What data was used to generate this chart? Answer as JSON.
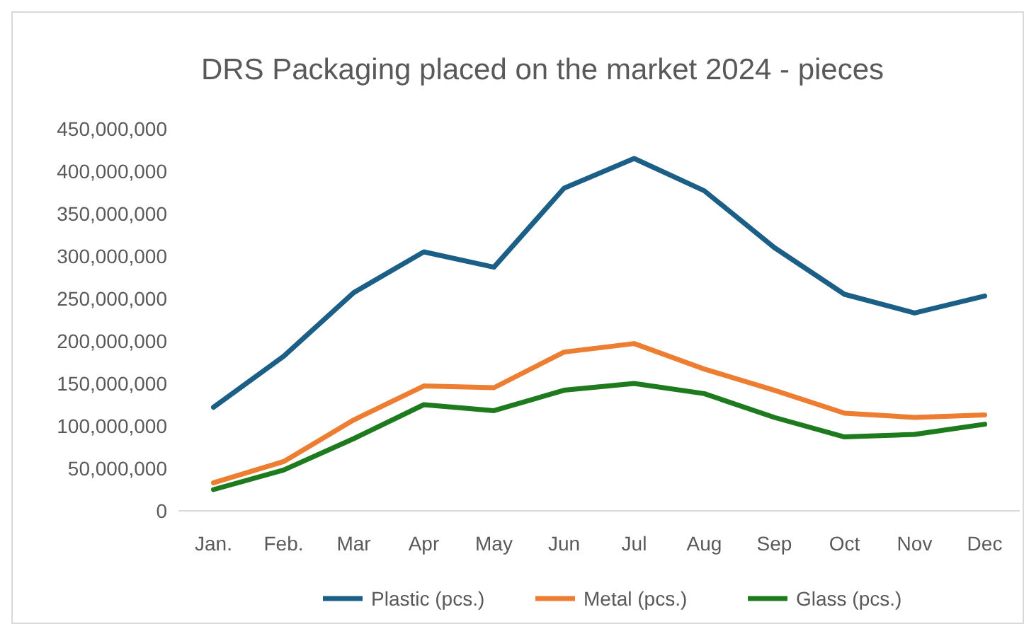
{
  "chart_data": {
    "type": "line",
    "title": "DRS Packaging placed on the market 2024 - pieces",
    "categories": [
      "Jan.",
      "Feb.",
      "Mar",
      "Apr",
      "May",
      "Jun",
      "Jul",
      "Aug",
      "Sep",
      "Oct",
      "Nov",
      "Dec"
    ],
    "series": [
      {
        "name": "Plastic (pcs.)",
        "color": "#1b5f87",
        "values": [
          122000000,
          182000000,
          257000000,
          305000000,
          287000000,
          380000000,
          415000000,
          377000000,
          310000000,
          255000000,
          233000000,
          253000000
        ]
      },
      {
        "name": "Metal (pcs.)",
        "color": "#ed7d31",
        "values": [
          33000000,
          58000000,
          107000000,
          147000000,
          145000000,
          187000000,
          197000000,
          167000000,
          142000000,
          115000000,
          110000000,
          113000000
        ]
      },
      {
        "name": "Glass (pcs.)",
        "color": "#1d7a1d",
        "values": [
          25000000,
          48000000,
          85000000,
          125000000,
          118000000,
          142000000,
          150000000,
          138000000,
          110000000,
          87000000,
          90000000,
          102000000
        ]
      }
    ],
    "ylim": [
      0,
      450000000
    ],
    "yticks": [
      {
        "value": 0,
        "label": "0"
      },
      {
        "value": 50000000,
        "label": "50,000,000"
      },
      {
        "value": 100000000,
        "label": "100,000,000"
      },
      {
        "value": 150000000,
        "label": "150,000,000"
      },
      {
        "value": 200000000,
        "label": "200,000,000"
      },
      {
        "value": 250000000,
        "label": "250,000,000"
      },
      {
        "value": 300000000,
        "label": "300,000,000"
      },
      {
        "value": 350000000,
        "label": "350,000,000"
      },
      {
        "value": 400000000,
        "label": "400,000,000"
      },
      {
        "value": 450000000,
        "label": "450,000,000"
      }
    ],
    "grid": false,
    "legend": "bottom",
    "marker": "none",
    "line_style": "solid"
  }
}
